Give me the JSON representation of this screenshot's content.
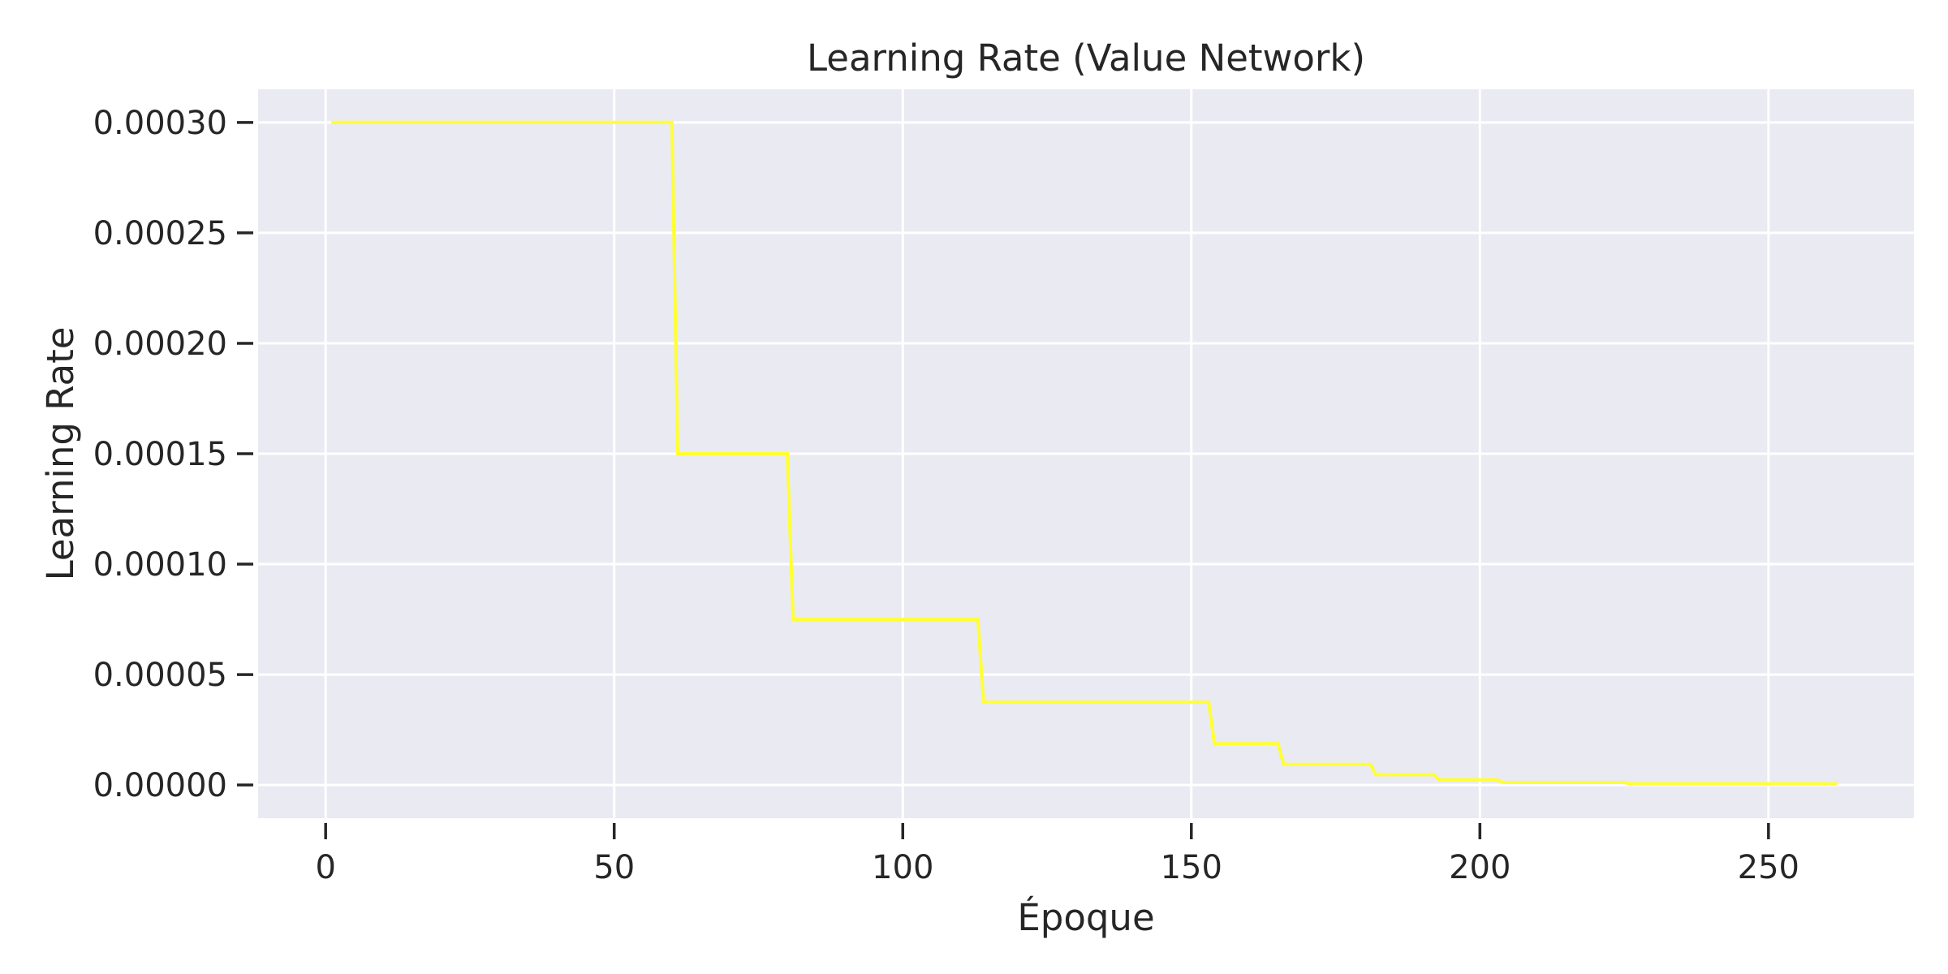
{
  "chart_data": {
    "type": "line",
    "title": "Learning Rate (Value Network)",
    "xlabel": "Époque",
    "ylabel": "Learning Rate",
    "xlim": [
      -11.7,
      275.2
    ],
    "ylim": [
      -1.5e-05,
      0.000315
    ],
    "x_ticks": [
      0,
      50,
      100,
      150,
      200,
      250
    ],
    "y_ticks": [
      0.0,
      5e-05,
      0.0001,
      0.00015,
      0.0002,
      0.00025,
      0.0003
    ],
    "x_tick_labels": [
      "0",
      "50",
      "100",
      "150",
      "200",
      "250"
    ],
    "y_tick_labels": [
      "0.00000",
      "0.00005",
      "0.00010",
      "0.00015",
      "0.00020",
      "0.00025",
      "0.00030"
    ],
    "grid": true,
    "background_color": "#eaeaf2",
    "grid_color": "#ffffff",
    "series": [
      {
        "color": "#ffff33",
        "step": true,
        "points": [
          [
            1,
            0.0003
          ],
          [
            60,
            0.0003
          ],
          [
            61,
            0.00015
          ],
          [
            80,
            0.00015
          ],
          [
            81,
            7.5e-05
          ],
          [
            113,
            7.5e-05
          ],
          [
            114,
            3.75e-05
          ],
          [
            153,
            3.75e-05
          ],
          [
            154,
            1.875e-05
          ],
          [
            165,
            1.875e-05
          ],
          [
            166,
            9.375e-06
          ],
          [
            181,
            9.375e-06
          ],
          [
            182,
            4.6875e-06
          ],
          [
            192,
            4.6875e-06
          ],
          [
            193,
            2.34375e-06
          ],
          [
            203,
            2.34375e-06
          ],
          [
            204,
            1.171875e-06
          ],
          [
            225,
            1.171875e-06
          ],
          [
            226,
            5.859375e-07
          ],
          [
            262,
            5.859375e-07
          ]
        ]
      }
    ]
  }
}
